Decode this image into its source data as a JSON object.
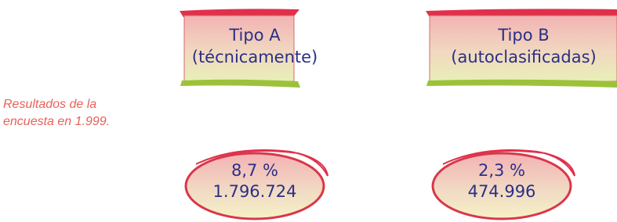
{
  "side_label": {
    "lines": [
      "Resultados de la",
      "encuesta en 1.999."
    ]
  },
  "groups": [
    {
      "title": [
        "Tipo A",
        "(técnicamente)"
      ],
      "result": [
        "8,7 %",
        "1.796.724"
      ]
    },
    {
      "title": [
        "Tipo B",
        "(autoclasificadas)"
      ],
      "result": [
        "2,3 %",
        "474.996"
      ]
    }
  ]
}
